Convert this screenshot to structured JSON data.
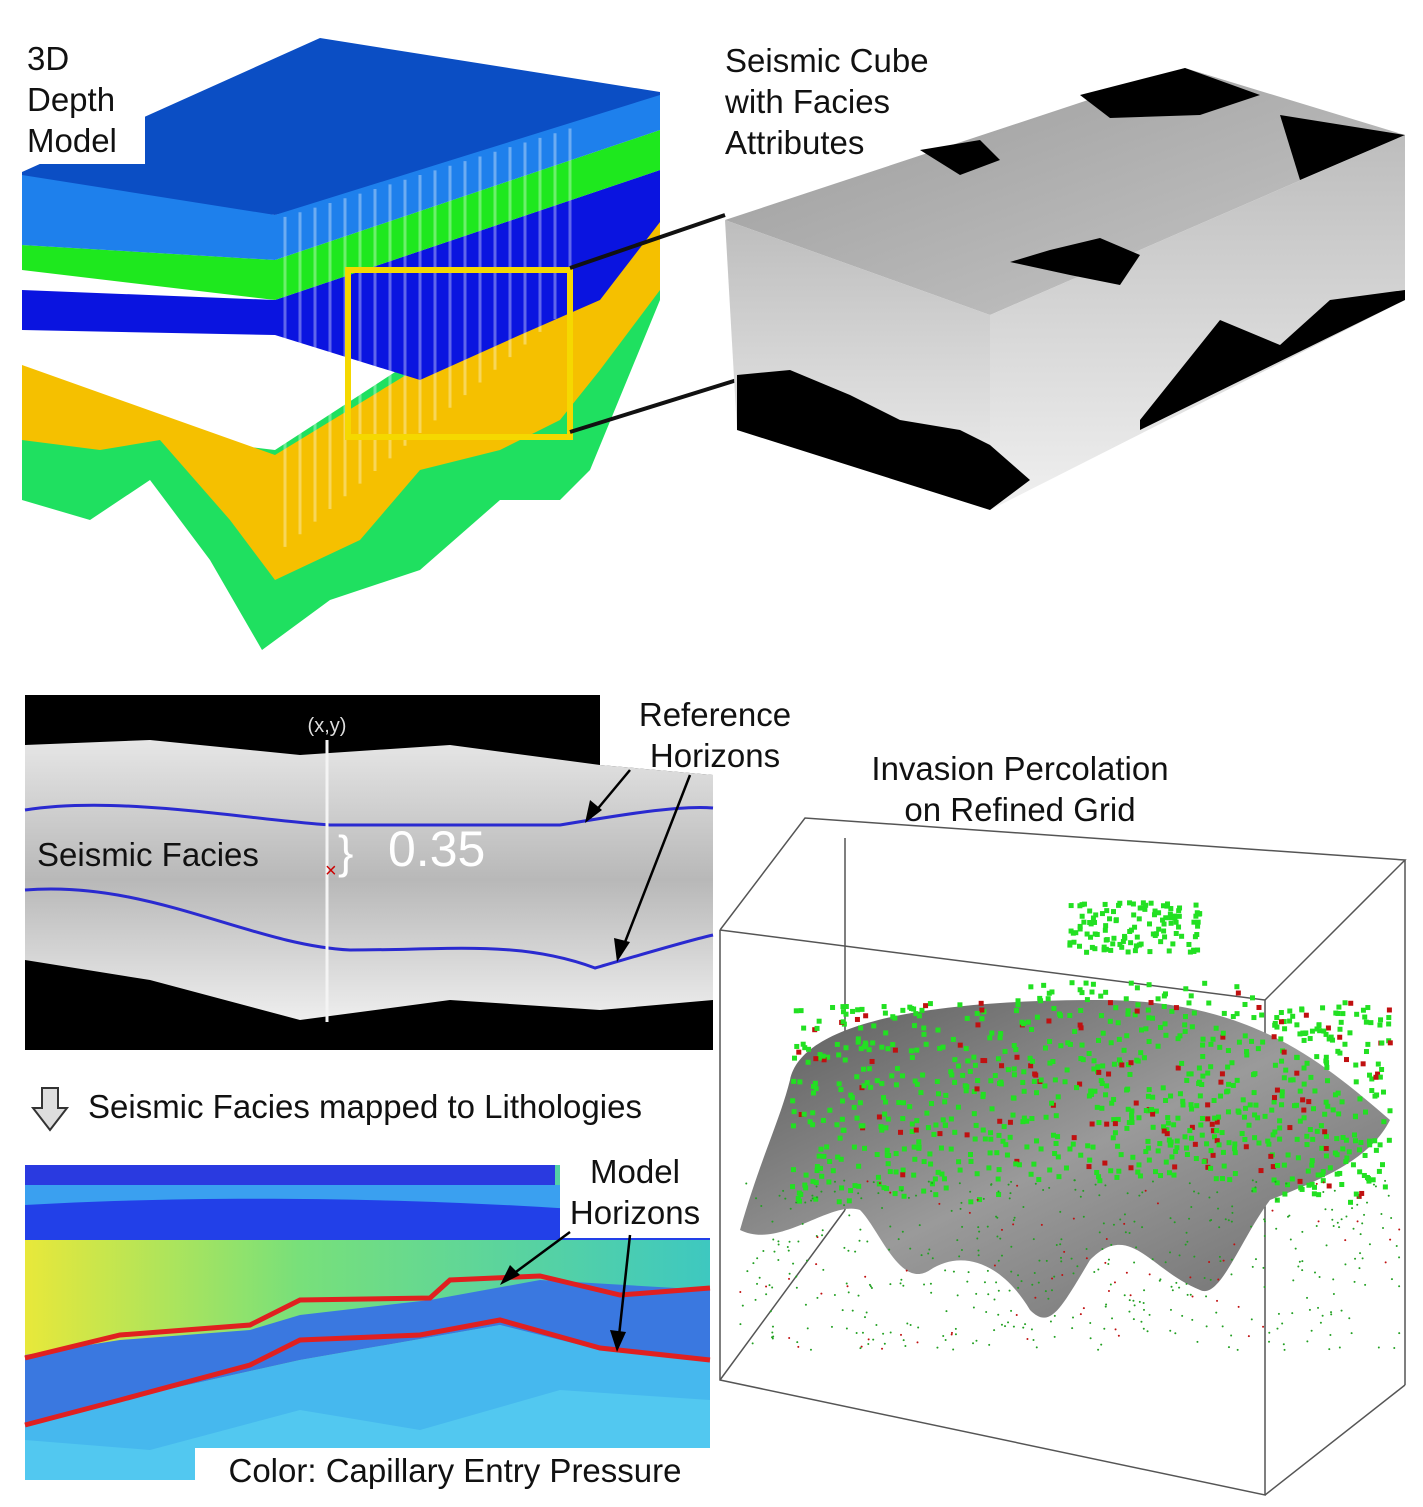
{
  "panels": {
    "depth_model": {
      "label": [
        "3D",
        "Depth",
        "Model"
      ]
    },
    "seismic_cube": {
      "label": [
        "Seismic Cube",
        "with Facies",
        "Attributes"
      ]
    },
    "seismic_section": {
      "label": "Seismic Facies",
      "annotation": [
        "Reference",
        "Horizons"
      ],
      "marker": "(x,y)",
      "value": 0.35
    },
    "mapping": {
      "label": "Seismic Facies mapped to Lithologies"
    },
    "lithology_section": {
      "annotation": [
        "Model",
        "Horizons"
      ],
      "caption": "Color: Capillary Entry Pressure"
    },
    "percolation": {
      "label": [
        "Invasion Percolation",
        "on Refined Grid"
      ]
    }
  }
}
